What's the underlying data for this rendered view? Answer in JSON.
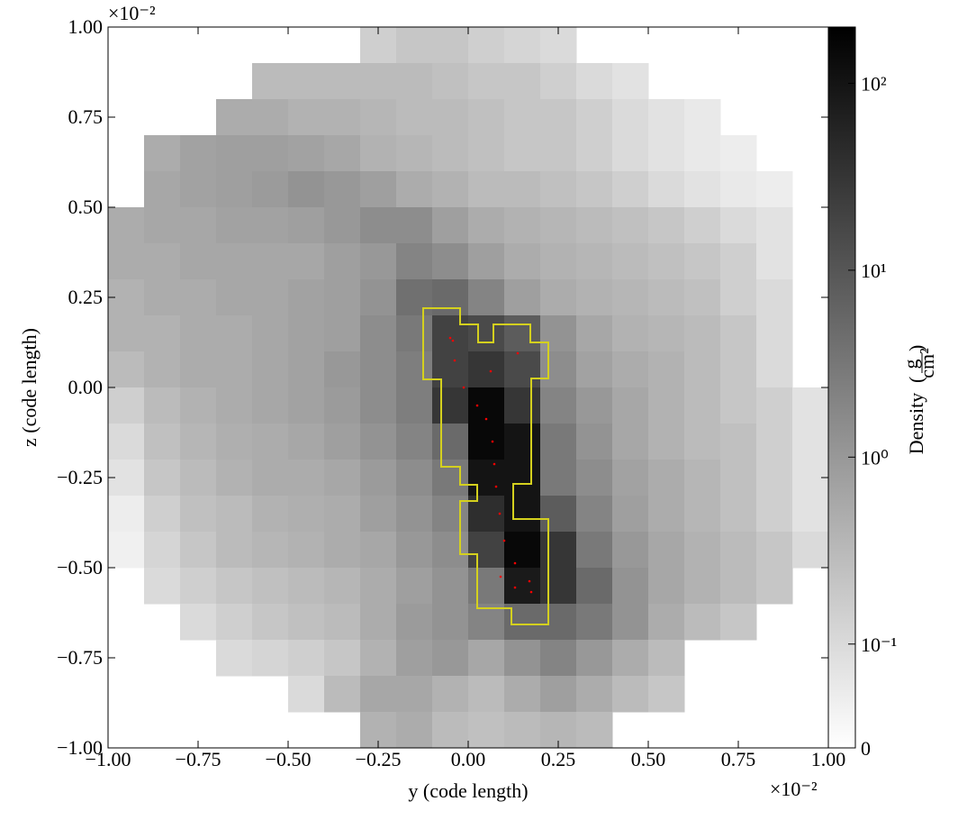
{
  "chart_data": {
    "type": "heatmap",
    "xlabel": "y  (code length)",
    "ylabel": "z  (code length)",
    "x_offset": "×10⁻²",
    "y_offset": "×10⁻²",
    "xlim": [
      -1,
      1
    ],
    "ylim": [
      -1,
      1
    ],
    "xticks": [
      {
        "value": -1,
        "label": "−1.00"
      },
      {
        "value": -0.75,
        "label": "−0.75"
      },
      {
        "value": -0.5,
        "label": "−0.50"
      },
      {
        "value": -0.25,
        "label": "−0.25"
      },
      {
        "value": 0,
        "label": "0.00"
      },
      {
        "value": 0.25,
        "label": "0.25"
      },
      {
        "value": 0.5,
        "label": "0.50"
      },
      {
        "value": 0.75,
        "label": "0.75"
      },
      {
        "value": 1,
        "label": "1.00"
      }
    ],
    "yticks": [
      {
        "value": -1,
        "label": "−1.00"
      },
      {
        "value": -0.75,
        "label": "−0.75"
      },
      {
        "value": -0.5,
        "label": "−0.50"
      },
      {
        "value": -0.25,
        "label": "−0.25"
      },
      {
        "value": 0,
        "label": "0.00"
      },
      {
        "value": 0.25,
        "label": "0.25"
      },
      {
        "value": 0.5,
        "label": "0.50"
      },
      {
        "value": 0.75,
        "label": "0.75"
      },
      {
        "value": 1,
        "label": "1.00"
      }
    ],
    "colorbar": {
      "label": "Density",
      "units_num": "g",
      "units_den": "cm²",
      "scale": "symlog",
      "linthresh": 0.1,
      "linscale": 0.5,
      "clim": [
        0,
        200
      ],
      "ticks": [
        0,
        {
          "value": 0.1,
          "label": "10⁻¹"
        },
        {
          "value": 1,
          "label": "10⁰"
        },
        {
          "value": 10,
          "label": "10¹"
        },
        {
          "value": 100,
          "label": "10²"
        }
      ]
    },
    "z": [
      [
        null,
        null,
        null,
        null,
        null,
        null,
        null,
        0.15,
        0.2,
        0.2,
        0.15,
        0.12,
        0.1,
        null,
        null,
        null,
        null,
        null,
        null,
        null
      ],
      [
        null,
        null,
        null,
        null,
        0.3,
        0.3,
        0.3,
        0.3,
        0.3,
        0.25,
        0.2,
        0.2,
        0.15,
        0.1,
        0.08,
        null,
        null,
        null,
        null,
        null
      ],
      [
        null,
        null,
        null,
        0.5,
        0.5,
        0.4,
        0.4,
        0.35,
        0.3,
        0.3,
        0.25,
        0.2,
        0.2,
        0.15,
        0.1,
        0.08,
        0.06,
        null,
        null,
        null
      ],
      [
        null,
        0.5,
        0.7,
        0.8,
        0.8,
        0.7,
        0.6,
        0.4,
        0.35,
        0.3,
        0.25,
        0.2,
        0.2,
        0.15,
        0.1,
        0.08,
        0.06,
        0.05,
        null,
        null
      ],
      [
        null,
        0.6,
        0.7,
        0.8,
        0.9,
        1.2,
        1.0,
        0.8,
        0.5,
        0.4,
        0.3,
        0.3,
        0.25,
        0.2,
        0.15,
        0.1,
        0.08,
        0.06,
        0.05,
        null
      ],
      [
        0.5,
        0.6,
        0.6,
        0.7,
        0.7,
        0.8,
        1.0,
        1.5,
        1.5,
        0.8,
        0.5,
        0.4,
        0.35,
        0.3,
        0.25,
        0.2,
        0.15,
        0.1,
        0.08,
        null
      ],
      [
        0.5,
        0.5,
        0.6,
        0.6,
        0.6,
        0.6,
        0.8,
        1.0,
        2.0,
        1.5,
        0.8,
        0.5,
        0.4,
        0.35,
        0.3,
        0.25,
        0.2,
        0.15,
        0.08,
        null
      ],
      [
        0.4,
        0.5,
        0.5,
        0.6,
        0.6,
        0.7,
        0.8,
        1.2,
        4,
        5,
        2,
        0.8,
        0.5,
        0.4,
        0.35,
        0.3,
        0.25,
        0.15,
        0.1,
        null
      ],
      [
        0.4,
        0.4,
        0.5,
        0.5,
        0.6,
        0.7,
        0.8,
        1.5,
        3,
        20,
        15,
        8,
        1.2,
        0.6,
        0.4,
        0.35,
        0.3,
        0.2,
        0.1,
        null
      ],
      [
        0.3,
        0.4,
        0.5,
        0.5,
        0.6,
        0.7,
        1.0,
        1.5,
        2.5,
        20,
        30,
        15,
        1.5,
        0.7,
        0.5,
        0.4,
        0.3,
        0.2,
        0.1,
        null
      ],
      [
        0.15,
        0.3,
        0.4,
        0.5,
        0.6,
        0.7,
        0.9,
        1.5,
        2.5,
        30,
        150,
        30,
        2,
        1,
        0.6,
        0.4,
        0.3,
        0.2,
        0.15,
        0.08
      ],
      [
        0.1,
        0.25,
        0.35,
        0.45,
        0.5,
        0.6,
        0.8,
        1.2,
        2,
        5,
        150,
        100,
        3,
        1.2,
        0.6,
        0.4,
        0.3,
        0.25,
        0.15,
        0.08
      ],
      [
        0.08,
        0.2,
        0.3,
        0.4,
        0.5,
        0.5,
        0.6,
        0.9,
        1.5,
        3,
        100,
        100,
        3,
        1.5,
        0.7,
        0.5,
        0.35,
        0.25,
        0.15,
        0.08
      ],
      [
        0.05,
        0.15,
        0.25,
        0.3,
        0.4,
        0.45,
        0.5,
        0.8,
        1.2,
        2,
        40,
        100,
        8,
        2,
        0.8,
        0.5,
        0.35,
        0.25,
        0.15,
        0.08
      ],
      [
        0.04,
        0.12,
        0.2,
        0.3,
        0.35,
        0.4,
        0.5,
        0.6,
        1.0,
        1.5,
        20,
        150,
        30,
        3,
        1,
        0.6,
        0.4,
        0.3,
        0.2,
        0.1
      ],
      [
        null,
        0.1,
        0.15,
        0.2,
        0.25,
        0.3,
        0.35,
        0.5,
        0.8,
        1.2,
        3,
        80,
        30,
        5,
        1.2,
        0.6,
        0.4,
        0.3,
        0.2,
        null
      ],
      [
        null,
        null,
        0.1,
        0.15,
        0.2,
        0.25,
        0.3,
        0.5,
        0.9,
        1.2,
        2,
        5,
        5,
        3,
        1.2,
        0.5,
        0.3,
        0.2,
        null,
        null
      ],
      [
        null,
        null,
        null,
        0.1,
        0.12,
        0.15,
        0.2,
        0.4,
        0.8,
        1.0,
        0.6,
        1.2,
        2,
        1.0,
        0.5,
        0.3,
        null,
        null,
        null,
        null
      ],
      [
        null,
        null,
        null,
        null,
        null,
        0.1,
        0.3,
        0.6,
        0.6,
        0.4,
        0.3,
        0.5,
        0.8,
        0.5,
        0.3,
        0.2,
        null,
        null,
        null,
        null
      ],
      [
        null,
        null,
        null,
        null,
        null,
        null,
        null,
        0.4,
        0.5,
        0.3,
        0.25,
        0.3,
        0.35,
        0.3,
        null,
        null,
        null,
        null,
        null,
        null
      ]
    ],
    "particles": {
      "color": "#ff0000",
      "x": [
        -0.05,
        -0.0375,
        -0.0125,
        0.025,
        0.05,
        0.0675,
        0.0725,
        0.0775,
        0.0875,
        0.1,
        0.13,
        0.17,
        0.175,
        0.13,
        0.09,
        0.1375,
        0.0625,
        -0.0425
      ],
      "y": [
        0.1375,
        0.075,
        0,
        -0.05,
        -0.0875,
        -0.15,
        -0.2125,
        -0.275,
        -0.35,
        -0.425,
        -0.4875,
        -0.5375,
        -0.5675,
        -0.555,
        -0.525,
        0.095,
        0.045,
        0.13
      ]
    }
  }
}
